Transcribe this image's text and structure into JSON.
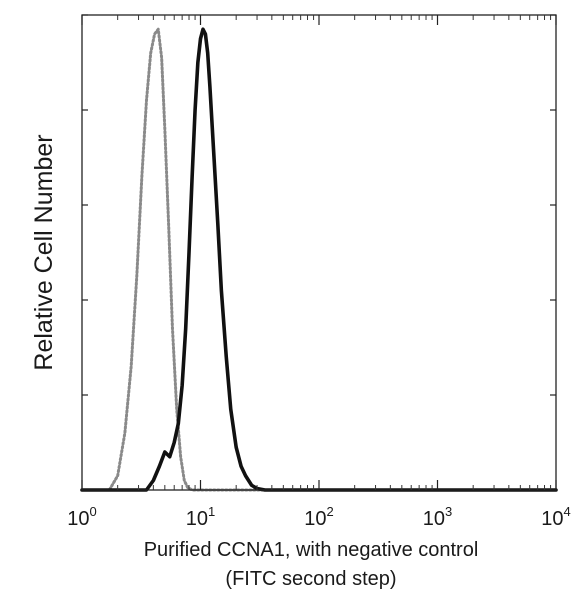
{
  "chart_data": {
    "type": "line",
    "title": "",
    "xlabel_line1": "Purified CCNA1, with negative control",
    "xlabel_line2": "(FITC second step)",
    "ylabel": "Relative Cell Number",
    "x_scale": "log",
    "xlim": [
      1,
      10000
    ],
    "ylim": [
      0,
      100
    ],
    "x_ticks": [
      {
        "base": "10",
        "exp": "0"
      },
      {
        "base": "10",
        "exp": "1"
      },
      {
        "base": "10",
        "exp": "2"
      },
      {
        "base": "10",
        "exp": "3"
      },
      {
        "base": "10",
        "exp": "4"
      }
    ],
    "grid": false,
    "legend": "none",
    "series": [
      {
        "style": "dotted-gray",
        "color": "#8a8a8a",
        "x": [
          1.0,
          1.7,
          2.0,
          2.3,
          2.6,
          2.9,
          3.2,
          3.5,
          3.8,
          4.1,
          4.4,
          4.7,
          5.0,
          5.4,
          5.8,
          6.3,
          6.8,
          7.3,
          7.8,
          8.5,
          10.0,
          10000
        ],
        "y": [
          0,
          0,
          3,
          12,
          26,
          45,
          66,
          82,
          92,
          96,
          97,
          91,
          76,
          55,
          34,
          17,
          7,
          2,
          0.5,
          0,
          0,
          0
        ]
      },
      {
        "style": "solid-black",
        "color": "#111111",
        "x": [
          1.0,
          3.5,
          4.0,
          4.5,
          5.0,
          5.5,
          6.0,
          6.5,
          7.0,
          7.5,
          8.0,
          8.5,
          9.0,
          9.5,
          10.0,
          10.5,
          11.0,
          11.5,
          12.0,
          13.0,
          14.0,
          15.0,
          16.5,
          18.0,
          20.0,
          22.0,
          24.0,
          27.0,
          30.0,
          35.0,
          10000
        ],
        "y": [
          0,
          0,
          2,
          5,
          8,
          7,
          10,
          14,
          22,
          34,
          50,
          66,
          80,
          90,
          95,
          97,
          96,
          92,
          85,
          70,
          56,
          42,
          28,
          17,
          9,
          5,
          3,
          1,
          0.3,
          0,
          0
        ]
      }
    ]
  }
}
